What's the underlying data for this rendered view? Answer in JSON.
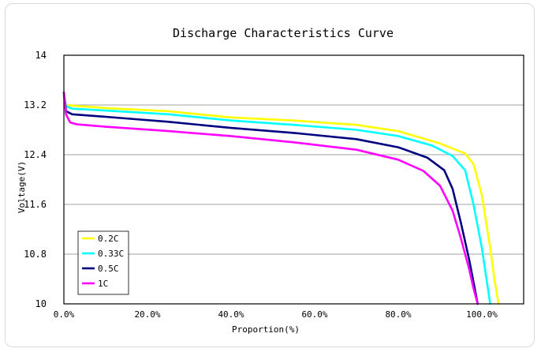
{
  "chart_data": {
    "type": "line",
    "title": "Discharge Characteristics Curve",
    "xlabel": "Proportion(%)",
    "ylabel": "Voltage(V)",
    "xlim": [
      0,
      110
    ],
    "ylim": [
      10,
      14
    ],
    "x_ticks": [
      "0.0%",
      "20.0%",
      "40.0%",
      "60.0%",
      "80.0%",
      "100.0%"
    ],
    "x_tick_values": [
      0,
      20,
      40,
      60,
      80,
      100
    ],
    "y_ticks": [
      "14",
      "13.2",
      "12.4",
      "11.6",
      "10.8",
      "10"
    ],
    "y_tick_values": [
      14,
      13.2,
      12.4,
      11.6,
      10.8,
      10
    ],
    "grid": "horizontal",
    "legend_position": "bottom-left",
    "series": [
      {
        "name": "0.2C",
        "color": "#ffff00",
        "x": [
          0,
          0.5,
          2,
          10,
          25,
          40,
          55,
          70,
          80,
          90,
          96,
          98,
          100,
          102,
          103,
          104
        ],
        "y": [
          13.3,
          13.2,
          13.19,
          13.15,
          13.1,
          13.0,
          12.95,
          12.88,
          12.78,
          12.58,
          12.42,
          12.25,
          11.75,
          10.9,
          10.4,
          10.0
        ]
      },
      {
        "name": "0.33C",
        "color": "#00ffff",
        "x": [
          0,
          0.5,
          2,
          10,
          25,
          40,
          55,
          70,
          80,
          88,
          93,
          96,
          98,
          100,
          101,
          102
        ],
        "y": [
          13.35,
          13.18,
          13.14,
          13.11,
          13.05,
          12.95,
          12.88,
          12.8,
          12.7,
          12.55,
          12.38,
          12.15,
          11.6,
          10.9,
          10.45,
          10.0
        ]
      },
      {
        "name": "0.5C",
        "color": "#000080",
        "x": [
          0,
          0.5,
          2,
          10,
          25,
          40,
          55,
          70,
          80,
          87,
          91,
          93,
          95,
          97,
          98,
          99
        ],
        "y": [
          13.4,
          13.1,
          13.05,
          13.01,
          12.93,
          12.83,
          12.75,
          12.65,
          12.52,
          12.35,
          12.15,
          11.85,
          11.3,
          10.7,
          10.35,
          10.0
        ]
      },
      {
        "name": "1C",
        "color": "#ff00ff",
        "x": [
          0,
          0.5,
          1.5,
          3,
          10,
          25,
          40,
          55,
          70,
          80,
          86,
          90,
          93,
          95,
          97,
          98,
          99
        ],
        "y": [
          13.4,
          13.05,
          12.92,
          12.89,
          12.85,
          12.78,
          12.7,
          12.6,
          12.48,
          12.32,
          12.14,
          11.9,
          11.5,
          11.05,
          10.55,
          10.25,
          10.0
        ]
      }
    ]
  }
}
